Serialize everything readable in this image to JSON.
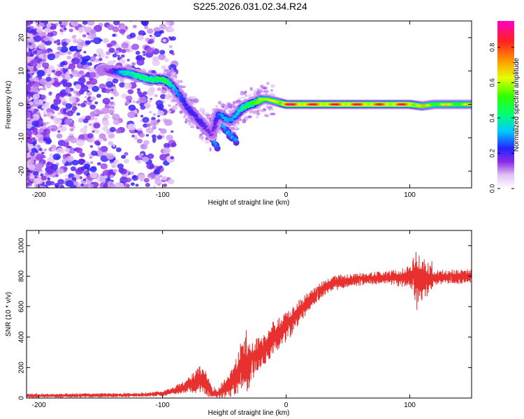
{
  "title": "S225.2026.031.02.34.R24",
  "chart_data": [
    {
      "type": "heatmap",
      "xlabel": "Height of straight line (km)",
      "ylabel": "Frequency (Hz)",
      "xlim": [
        -210,
        150
      ],
      "ylim": [
        -25,
        25
      ],
      "xticks": [
        -200,
        -100,
        0,
        100
      ],
      "yticks": [
        -20,
        -10,
        0,
        10,
        20
      ],
      "colorbar": {
        "label": "Normalized spectral amplitude",
        "range": [
          0.0,
          0.95
        ],
        "ticks": [
          0.0,
          0.2,
          0.4,
          0.6,
          0.8
        ]
      },
      "ridge": {
        "x": [
          -150,
          -140,
          -130,
          -120,
          -110,
          -100,
          -95,
          -90,
          -85,
          -80,
          -75,
          -70,
          -65,
          -60,
          -55,
          -50,
          -45,
          -40,
          -35,
          -30,
          -25,
          -20,
          -15,
          -10,
          -5,
          0,
          20,
          40,
          60,
          80,
          100,
          110,
          120,
          150
        ],
        "y": [
          10.5,
          10,
          9.5,
          8.5,
          7.5,
          7.5,
          6.5,
          4.5,
          2,
          -1,
          -3,
          -5,
          -7,
          -9,
          -3,
          -4,
          -5,
          -3,
          -1,
          0,
          0.5,
          1.5,
          1.5,
          1,
          0.5,
          0,
          0,
          0,
          0,
          0,
          0,
          -0.5,
          0,
          0
        ],
        "amplitude": [
          0.05,
          0.1,
          0.25,
          0.3,
          0.3,
          0.35,
          0.3,
          0.2,
          0.15,
          0.12,
          0.12,
          0.12,
          0.1,
          0.08,
          0.15,
          0.2,
          0.18,
          0.2,
          0.3,
          0.35,
          0.4,
          0.5,
          0.5,
          0.55,
          0.6,
          0.85,
          0.8,
          0.8,
          0.8,
          0.75,
          0.8,
          0.6,
          0.55,
          0.55
        ]
      },
      "branches": [
        {
          "x": [
            -90,
            -80,
            -70,
            -60,
            -55
          ],
          "y": [
            4,
            -2,
            -6,
            -10,
            -13
          ]
        },
        {
          "x": [
            -58,
            -52,
            -46,
            -40
          ],
          "y": [
            -3,
            -6,
            -9,
            -11
          ]
        }
      ]
    },
    {
      "type": "line",
      "xlabel": "Height of straight line (km)",
      "ylabel": "SNR (10 * v/v)",
      "xlim": [
        -210,
        150
      ],
      "ylim": [
        0,
        1100
      ],
      "xticks": [
        -200,
        -100,
        0,
        100
      ],
      "yticks": [
        0,
        200,
        400,
        600,
        800,
        1000
      ],
      "color": "#e8302e",
      "envelope": {
        "x": [
          -210,
          -120,
          -100,
          -90,
          -80,
          -70,
          -65,
          -60,
          -55,
          -50,
          -40,
          -35,
          -30,
          -25,
          -20,
          -10,
          0,
          10,
          20,
          30,
          40,
          60,
          80,
          100,
          105,
          110,
          120,
          150
        ],
        "mean": [
          15,
          20,
          30,
          50,
          80,
          120,
          100,
          30,
          30,
          60,
          150,
          250,
          200,
          280,
          300,
          400,
          470,
          560,
          650,
          720,
          760,
          780,
          790,
          790,
          800,
          780,
          790,
          800
        ],
        "spread": [
          12,
          12,
          15,
          25,
          45,
          90,
          100,
          30,
          30,
          60,
          130,
          170,
          170,
          110,
          100,
          110,
          100,
          80,
          60,
          50,
          45,
          40,
          40,
          70,
          180,
          160,
          50,
          45
        ]
      }
    }
  ]
}
